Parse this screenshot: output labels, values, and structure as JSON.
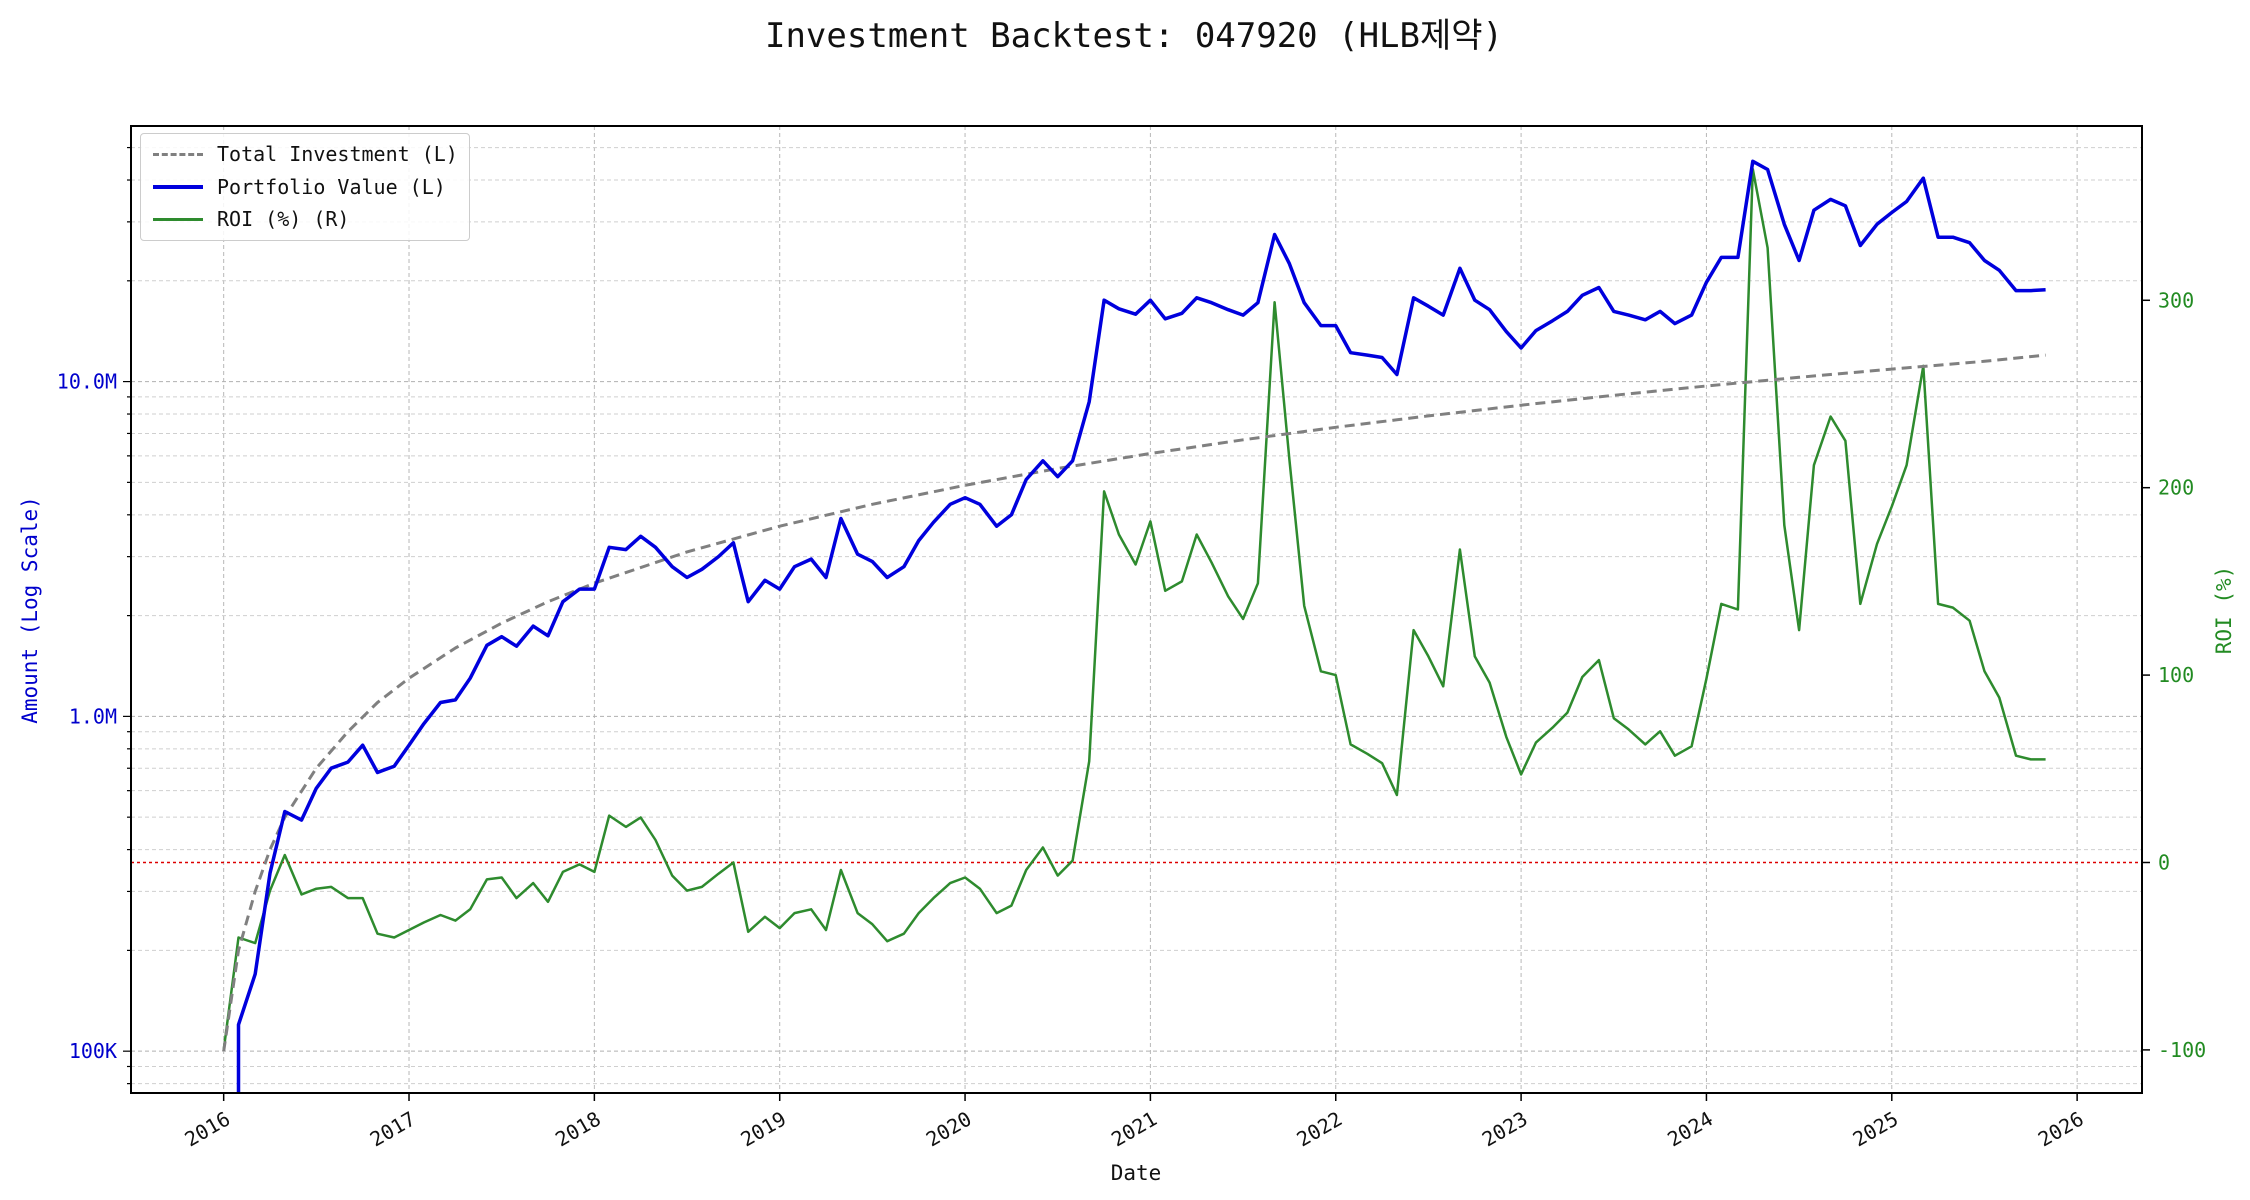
{
  "chart_data": {
    "type": "line",
    "title": "Investment Backtest: 047920 (HLB제약)",
    "xlabel": "Date",
    "ylabel_left": "Amount (Log Scale)",
    "ylabel_right": "ROI (%)",
    "x_ticks": [
      "2016",
      "2017",
      "2018",
      "2019",
      "2020",
      "2021",
      "2022",
      "2023",
      "2024",
      "2025",
      "2026"
    ],
    "y_left_ticks": [
      "100K",
      "1.0M",
      "10.0M"
    ],
    "y_left_scale": "log",
    "y_left_range": [
      75000,
      58000000
    ],
    "y_right_ticks": [
      "-100",
      "0",
      "100",
      "200",
      "300"
    ],
    "y_right_range": [
      -123,
      393
    ],
    "x_range": [
      2015.5,
      2026.35
    ],
    "grid": true,
    "legend_position": "top-left",
    "colors": {
      "total_investment": "#808080",
      "portfolio_value": "#0000dd",
      "roi": "#2e8b2e",
      "zero_line": "#dd0000",
      "left_axis_text": "#0000cc",
      "right_axis_text": "#228b22"
    },
    "series": [
      {
        "name": "Total Investment (L)",
        "axis": "left",
        "style": "dashed",
        "x": [
          2016.0,
          2016.08,
          2016.17,
          2016.25,
          2016.33,
          2016.5,
          2016.67,
          2016.83,
          2017.0,
          2017.25,
          2017.5,
          2017.75,
          2018.0,
          2018.5,
          2019.0,
          2019.5,
          2020.0,
          2020.5,
          2021.0,
          2021.5,
          2022.0,
          2022.5,
          2023.0,
          2023.5,
          2024.0,
          2024.5,
          2025.0,
          2025.5,
          2025.83
        ],
        "values": [
          100000,
          200000,
          300000,
          400000,
          500000,
          700000,
          900000,
          1100000,
          1300000,
          1600000,
          1900000,
          2200000,
          2500000,
          3100000,
          3700000,
          4300000,
          4900000,
          5500000,
          6100000,
          6700000,
          7300000,
          7900000,
          8500000,
          9100000,
          9700000,
          10300000,
          10900000,
          11500000,
          12000000
        ]
      },
      {
        "name": "Portfolio Value (L)",
        "axis": "left",
        "style": "solid",
        "x": [
          2016.08,
          2016.08,
          2016.17,
          2016.25,
          2016.33,
          2016.42,
          2016.5,
          2016.58,
          2016.67,
          2016.75,
          2016.83,
          2016.92,
          2017.0,
          2017.08,
          2017.17,
          2017.25,
          2017.33,
          2017.42,
          2017.5,
          2017.58,
          2017.67,
          2017.75,
          2017.83,
          2017.92,
          2018.0,
          2018.08,
          2018.17,
          2018.25,
          2018.33,
          2018.42,
          2018.5,
          2018.58,
          2018.67,
          2018.75,
          2018.83,
          2018.92,
          2019.0,
          2019.08,
          2019.17,
          2019.25,
          2019.33,
          2019.42,
          2019.5,
          2019.58,
          2019.67,
          2019.75,
          2019.83,
          2019.92,
          2020.0,
          2020.08,
          2020.17,
          2020.25,
          2020.33,
          2020.42,
          2020.5,
          2020.58,
          2020.67,
          2020.75,
          2020.83,
          2020.92,
          2021.0,
          2021.08,
          2021.17,
          2021.25,
          2021.33,
          2021.42,
          2021.5,
          2021.58,
          2021.67,
          2021.75,
          2021.83,
          2021.92,
          2022.0,
          2022.08,
          2022.17,
          2022.25,
          2022.33,
          2022.42,
          2022.5,
          2022.58,
          2022.67,
          2022.75,
          2022.83,
          2022.92,
          2023.0,
          2023.08,
          2023.17,
          2023.25,
          2023.33,
          2023.42,
          2023.5,
          2023.58,
          2023.67,
          2023.75,
          2023.83,
          2023.92,
          2024.0,
          2024.08,
          2024.17,
          2024.25,
          2024.33,
          2024.42,
          2024.5,
          2024.58,
          2024.67,
          2024.75,
          2024.83,
          2024.92,
          2025.0,
          2025.08,
          2025.17,
          2025.25,
          2025.33,
          2025.42,
          2025.5,
          2025.58,
          2025.67,
          2025.75,
          2025.83
        ],
        "values": [
          70000,
          120000,
          170000,
          340000,
          520000,
          490000,
          610000,
          700000,
          730000,
          820000,
          680000,
          710000,
          820000,
          950000,
          1100000,
          1120000,
          1300000,
          1630000,
          1730000,
          1620000,
          1860000,
          1740000,
          2200000,
          2400000,
          2400000,
          3200000,
          3150000,
          3450000,
          3200000,
          2800000,
          2600000,
          2750000,
          3000000,
          3300000,
          2200000,
          2550000,
          2400000,
          2800000,
          2950000,
          2600000,
          3900000,
          3050000,
          2900000,
          2600000,
          2800000,
          3350000,
          3800000,
          4300000,
          4500000,
          4300000,
          3700000,
          4000000,
          5100000,
          5800000,
          5200000,
          5800000,
          8700000,
          17500000,
          16500000,
          15900000,
          17500000,
          15400000,
          16000000,
          17800000,
          17200000,
          16400000,
          15800000,
          17200000,
          27500000,
          22500000,
          17200000,
          14700000,
          14700000,
          12200000,
          12000000,
          11800000,
          10500000,
          17800000,
          16800000,
          15800000,
          21800000,
          17500000,
          16400000,
          14100000,
          12600000,
          14200000,
          15200000,
          16200000,
          18100000,
          19100000,
          16200000,
          15800000,
          15300000,
          16200000,
          14900000,
          15800000,
          19800000,
          23500000,
          23500000,
          45500000,
          43000000,
          29500000,
          23000000,
          32500000,
          35000000,
          33500000,
          25500000,
          29500000,
          32000000,
          34500000,
          40500000,
          27000000,
          27000000,
          26000000,
          23000000,
          21500000,
          18700000,
          18700000,
          18800000
        ]
      },
      {
        "name": "ROI (%) (R)",
        "axis": "right",
        "style": "solid",
        "x": [
          2016.0,
          2016.08,
          2016.17,
          2016.25,
          2016.33,
          2016.42,
          2016.5,
          2016.58,
          2016.67,
          2016.75,
          2016.83,
          2016.92,
          2017.0,
          2017.08,
          2017.17,
          2017.25,
          2017.33,
          2017.42,
          2017.5,
          2017.58,
          2017.67,
          2017.75,
          2017.83,
          2017.92,
          2018.0,
          2018.08,
          2018.17,
          2018.25,
          2018.33,
          2018.42,
          2018.5,
          2018.58,
          2018.67,
          2018.75,
          2018.83,
          2018.92,
          2019.0,
          2019.08,
          2019.17,
          2019.25,
          2019.33,
          2019.42,
          2019.5,
          2019.58,
          2019.67,
          2019.75,
          2019.83,
          2019.92,
          2020.0,
          2020.08,
          2020.17,
          2020.25,
          2020.33,
          2020.42,
          2020.5,
          2020.58,
          2020.67,
          2020.75,
          2020.83,
          2020.92,
          2021.0,
          2021.08,
          2021.17,
          2021.25,
          2021.33,
          2021.42,
          2021.5,
          2021.58,
          2021.67,
          2021.75,
          2021.83,
          2021.92,
          2022.0,
          2022.08,
          2022.17,
          2022.25,
          2022.33,
          2022.42,
          2022.5,
          2022.58,
          2022.67,
          2022.75,
          2022.83,
          2022.92,
          2023.0,
          2023.08,
          2023.17,
          2023.25,
          2023.33,
          2023.42,
          2023.5,
          2023.58,
          2023.67,
          2023.75,
          2023.83,
          2023.92,
          2024.0,
          2024.08,
          2024.17,
          2024.25,
          2024.33,
          2024.42,
          2024.5,
          2024.58,
          2024.67,
          2024.75,
          2024.83,
          2024.92,
          2025.0,
          2025.08,
          2025.17,
          2025.25,
          2025.33,
          2025.42,
          2025.5,
          2025.58,
          2025.67,
          2025.75,
          2025.83
        ],
        "values": [
          -100,
          -40,
          -43,
          -15,
          4,
          -17,
          -14,
          -13,
          -19,
          -19,
          -38,
          -40,
          -36,
          -32,
          -28,
          -31,
          -25,
          -9,
          -8,
          -19,
          -11,
          -21,
          -5,
          -1,
          -5,
          25,
          19,
          24,
          12,
          -7,
          -15,
          -13,
          -6,
          0,
          -37,
          -29,
          -35,
          -27,
          -25,
          -36,
          -4,
          -27,
          -33,
          -42,
          -38,
          -27,
          -19,
          -11,
          -8,
          -14,
          -27,
          -23,
          -4,
          8,
          -7,
          1,
          54,
          198,
          175,
          159,
          182,
          145,
          150,
          175,
          160,
          142,
          130,
          149,
          299,
          215,
          137,
          102,
          100,
          63,
          58,
          53,
          36,
          124,
          110,
          94,
          167,
          110,
          96,
          67,
          47,
          64,
          72,
          80,
          99,
          108,
          77,
          71,
          63,
          70,
          57,
          62,
          98,
          138,
          135,
          370,
          328,
          180,
          124,
          212,
          238,
          225,
          138,
          170,
          190,
          212,
          265,
          138,
          136,
          129,
          102,
          88,
          57,
          55,
          55
        ]
      }
    ]
  }
}
